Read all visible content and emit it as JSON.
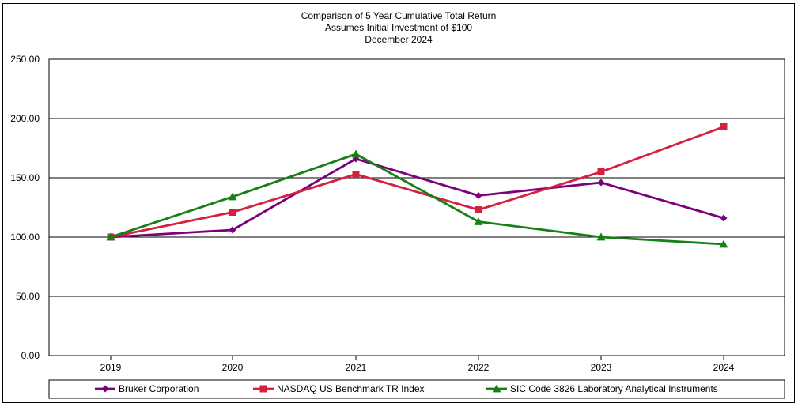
{
  "chart_data": {
    "type": "line",
    "title_lines": [
      "Comparison of 5 Year Cumulative Total Return",
      "Assumes Initial Investment of $100",
      "December 2024"
    ],
    "categories": [
      "2019",
      "2020",
      "2021",
      "2022",
      "2023",
      "2024"
    ],
    "ylim": [
      0,
      250
    ],
    "y_ticks": [
      0,
      50,
      100,
      150,
      200,
      250
    ],
    "y_tick_labels": [
      "0.00",
      "50.00",
      "100.00",
      "150.00",
      "200.00",
      "250.00"
    ],
    "grid": "horizontal",
    "legend_position": "bottom",
    "series": [
      {
        "name": "Bruker Corporation",
        "color": "#7b007b",
        "marker": "diamond",
        "values": [
          100,
          106,
          166,
          135,
          146,
          116
        ]
      },
      {
        "name": "NASDAQ US Benchmark TR Index",
        "color": "#d6203f",
        "marker": "square",
        "values": [
          100,
          121,
          153,
          123,
          155,
          193
        ]
      },
      {
        "name": "SIC Code 3826 Laboratory Analytical Instruments",
        "color": "#168016",
        "marker": "triangle",
        "values": [
          100,
          134,
          170,
          113,
          100,
          94
        ]
      }
    ]
  }
}
